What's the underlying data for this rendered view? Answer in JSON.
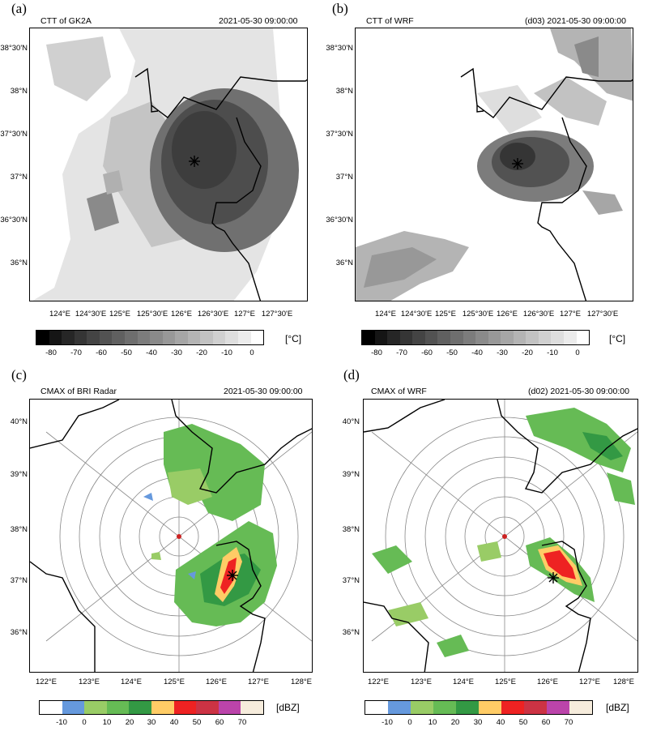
{
  "panels": [
    {
      "label": "(a)",
      "title_left": "CTT of GK2A",
      "title_right": "2021-05-30 09:00:00",
      "yticks": [
        "38°30'N",
        "38°N",
        "37°30'N",
        "37°N",
        "36°30'N",
        "36°N"
      ],
      "xticks": [
        "124°E",
        "124°30'E",
        "125°E",
        "125°30'E",
        "126°E",
        "126°30'E",
        "127°E",
        "127°30'E"
      ],
      "colorbar_labels": [
        "-80",
        "-70",
        "-60",
        "-50",
        "-40",
        "-30",
        "-20",
        "-10",
        "0"
      ],
      "unit": "[°C]"
    },
    {
      "label": "(b)",
      "title_left": "CTT of WRF",
      "title_right": "(d03) 2021-05-30 09:00:00",
      "yticks": [
        "38°30'N",
        "38°N",
        "37°30'N",
        "37°N",
        "36°30'N",
        "36°N"
      ],
      "xticks": [
        "124°E",
        "124°30'E",
        "125°E",
        "125°30'E",
        "126°E",
        "126°30'E",
        "127°E",
        "127°30'E"
      ],
      "colorbar_labels": [
        "-80",
        "-70",
        "-60",
        "-50",
        "-40",
        "-30",
        "-20",
        "-10",
        "0"
      ],
      "unit": "[°C]"
    },
    {
      "label": "(c)",
      "title_left": "CMAX of BRI Radar",
      "title_right": "2021-05-30 09:00:00",
      "yticks": [
        "40°N",
        "39°N",
        "38°N",
        "37°N",
        "36°N"
      ],
      "xticks": [
        "122°E",
        "123°E",
        "124°E",
        "125°E",
        "126°E",
        "127°E",
        "128°E"
      ],
      "colorbar_labels": [
        "-10",
        "0",
        "10",
        "20",
        "30",
        "40",
        "50",
        "60",
        "70"
      ],
      "unit": "[dBZ]"
    },
    {
      "label": "(d)",
      "title_left": "CMAX of WRF",
      "title_right": "(d02) 2021-05-30 09:00:00",
      "yticks": [
        "40°N",
        "39°N",
        "38°N",
        "37°N",
        "36°N"
      ],
      "xticks": [
        "122°E",
        "123°E",
        "124°E",
        "125°E",
        "126°E",
        "127°E",
        "128°E"
      ],
      "colorbar_labels": [
        "-10",
        "0",
        "10",
        "20",
        "30",
        "40",
        "50",
        "60",
        "70"
      ],
      "unit": "[dBZ]"
    }
  ],
  "colors": {
    "ctt_scale": [
      "#000000",
      "#151515",
      "#262626",
      "#353535",
      "#444444",
      "#525252",
      "#606060",
      "#6e6e6e",
      "#7c7c7c",
      "#8a8a8a",
      "#989898",
      "#a6a6a6",
      "#b4b4b4",
      "#c2c2c2",
      "#d0d0d0",
      "#dedede",
      "#ececec",
      "#ffffff"
    ],
    "dbz_scale": [
      "#ffffff",
      "#6699dd",
      "#99cc66",
      "#66bb55",
      "#339944",
      "#ffcc66",
      "#ee2222",
      "#cc3344",
      "#bb44aa",
      "#f6ecdc"
    ]
  }
}
